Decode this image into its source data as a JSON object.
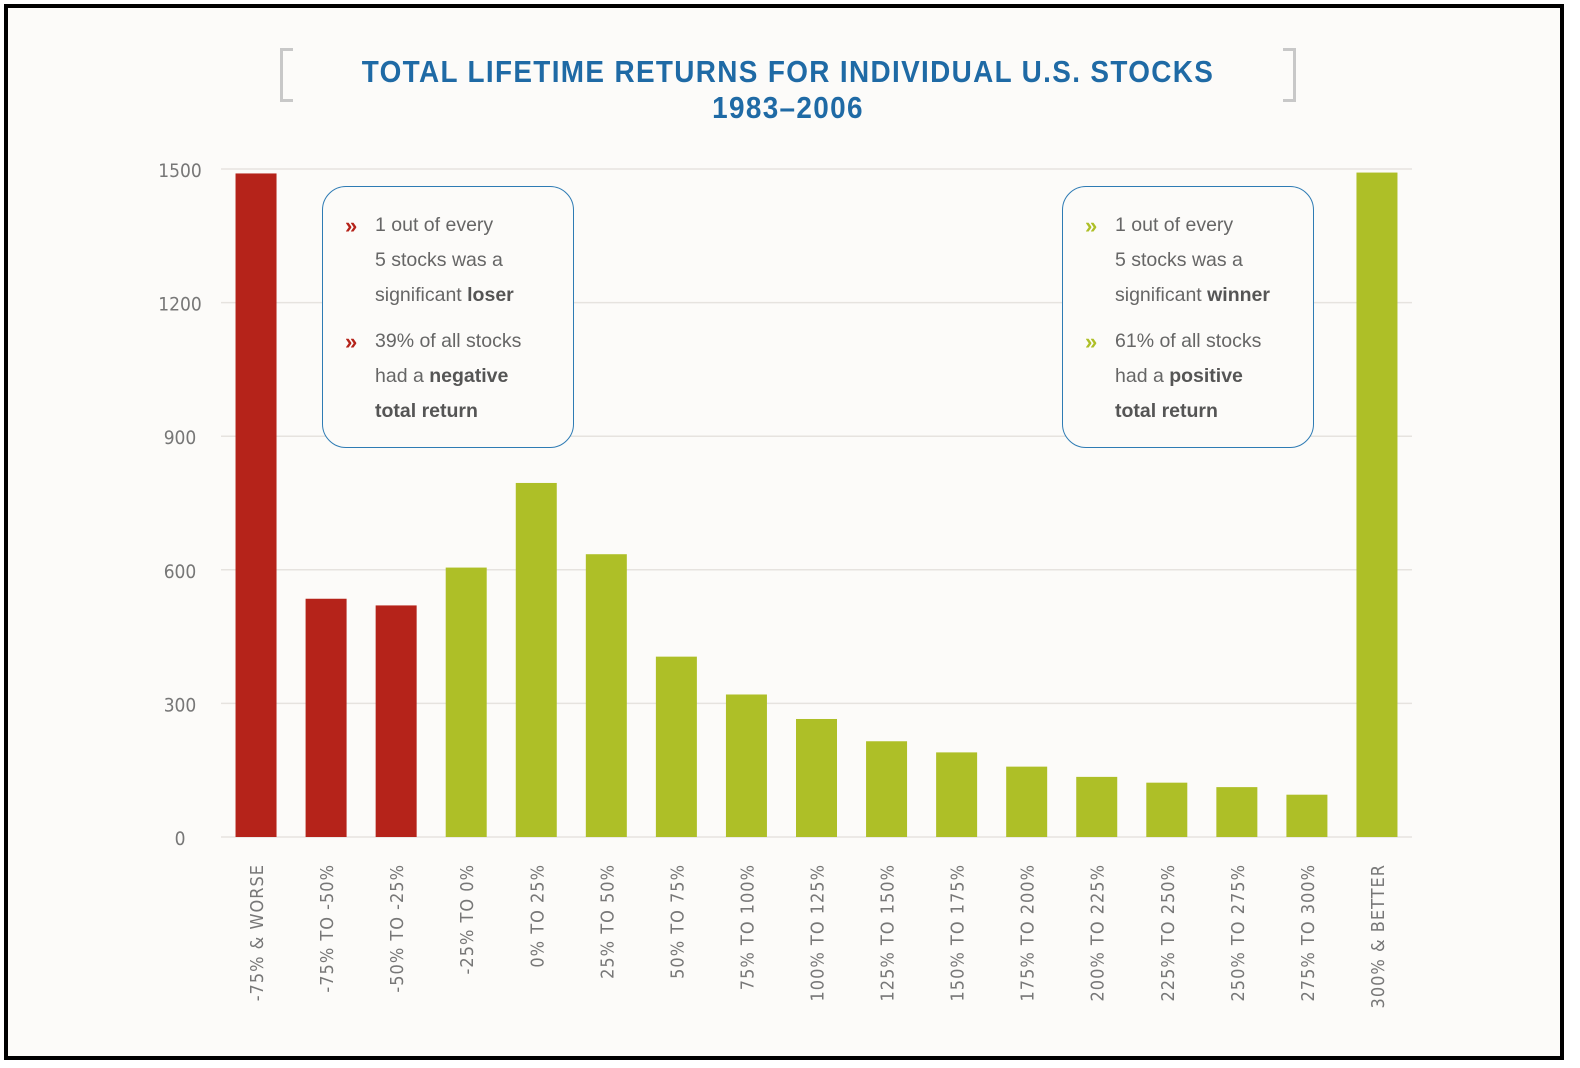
{
  "colors": {
    "negative": "#b5231a",
    "positive": "#aebf27",
    "title": "#1f6aa5",
    "grid": "#e6e3df",
    "axis_text": "#777777"
  },
  "chart_data": {
    "type": "bar",
    "title": "TOTAL LIFETIME RETURNS FOR INDIVIDUAL U.S. STOCKS 1983–2006",
    "xlabel": "",
    "ylabel": "",
    "ylim": [
      0,
      1500
    ],
    "yticks": [
      "0",
      "300",
      "600",
      "900",
      "1200",
      "1500"
    ],
    "grid": true,
    "categories": [
      "-75% & WORSE",
      "-75% TO -50%",
      "-50% TO -25%",
      "-25% TO 0%",
      "0% TO 25%",
      "25% TO 50%",
      "50% TO 75%",
      "75% TO 100%",
      "100% TO 125%",
      "125% TO 150%",
      "150% TO 175%",
      "175% TO 200%",
      "200% TO 225%",
      "225% TO 250%",
      "250% TO 275%",
      "275% TO 300%",
      "300% & BETTER"
    ],
    "values": [
      1490,
      535,
      520,
      605,
      795,
      635,
      405,
      320,
      265,
      215,
      190,
      158,
      135,
      122,
      112,
      95,
      1492
    ],
    "bar_groups": [
      "negative",
      "negative",
      "negative",
      "positive",
      "positive",
      "positive",
      "positive",
      "positive",
      "positive",
      "positive",
      "positive",
      "positive",
      "positive",
      "positive",
      "positive",
      "positive",
      "positive"
    ]
  },
  "callouts": {
    "left": {
      "bullets": [
        {
          "marker": "»",
          "lines": [
            {
              "text": "1 out of every"
            },
            {
              "text": "5 stocks was a"
            },
            {
              "text": "significant ",
              "bold": "loser"
            }
          ]
        },
        {
          "marker": "»",
          "lines": [
            {
              "text": "39% of all stocks"
            },
            {
              "text": "had a ",
              "bold": "negative"
            },
            {
              "text": "",
              "bold": "total return"
            }
          ]
        }
      ]
    },
    "right": {
      "bullets": [
        {
          "marker": "»",
          "lines": [
            {
              "text": "1 out of every"
            },
            {
              "text": "5 stocks was a"
            },
            {
              "text": "significant ",
              "bold": "winner"
            }
          ]
        },
        {
          "marker": "»",
          "lines": [
            {
              "text": "61% of all stocks"
            },
            {
              "text": "had a ",
              "bold": "positive"
            },
            {
              "text": "",
              "bold": "total return"
            }
          ]
        }
      ]
    }
  }
}
